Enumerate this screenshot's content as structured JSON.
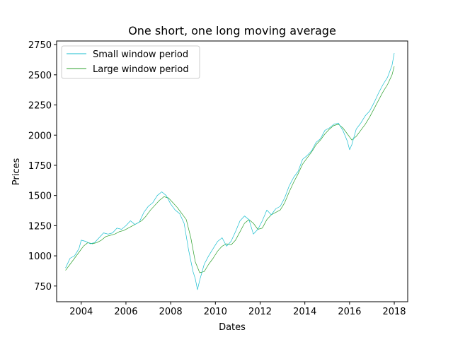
{
  "chart_data": {
    "type": "line",
    "title": "One short, one long moving average",
    "xlabel": "Dates",
    "ylabel": "Prices",
    "xlim": [
      2002.9,
      2018.6
    ],
    "ylim": [
      620,
      2780
    ],
    "grid": false,
    "legend_position": "top-left",
    "x_ticks": [
      {
        "value": 2004,
        "label": "2004"
      },
      {
        "value": 2006,
        "label": "2006"
      },
      {
        "value": 2008,
        "label": "2008"
      },
      {
        "value": 2010,
        "label": "2010"
      },
      {
        "value": 2012,
        "label": "2012"
      },
      {
        "value": 2014,
        "label": "2014"
      },
      {
        "value": 2016,
        "label": "2016"
      },
      {
        "value": 2018,
        "label": "2018"
      }
    ],
    "y_ticks": [
      {
        "value": 750,
        "label": "750"
      },
      {
        "value": 1000,
        "label": "1000"
      },
      {
        "value": 1250,
        "label": "1250"
      },
      {
        "value": 1500,
        "label": "1500"
      },
      {
        "value": 1750,
        "label": "1750"
      },
      {
        "value": 2000,
        "label": "2000"
      },
      {
        "value": 2250,
        "label": "2250"
      },
      {
        "value": 2500,
        "label": "2500"
      },
      {
        "value": 2750,
        "label": "2750"
      }
    ],
    "series": [
      {
        "name": "Small window period",
        "color": "#17becf",
        "x": [
          2003.3,
          2003.5,
          2003.7,
          2003.9,
          2004.0,
          2004.2,
          2004.4,
          2004.6,
          2004.8,
          2005.0,
          2005.2,
          2005.4,
          2005.6,
          2005.8,
          2006.0,
          2006.2,
          2006.4,
          2006.6,
          2006.8,
          2007.0,
          2007.2,
          2007.4,
          2007.6,
          2007.8,
          2008.0,
          2008.2,
          2008.4,
          2008.6,
          2008.8,
          2009.0,
          2009.1,
          2009.2,
          2009.3,
          2009.5,
          2009.7,
          2009.9,
          2010.1,
          2010.3,
          2010.5,
          2010.7,
          2010.9,
          2011.1,
          2011.3,
          2011.5,
          2011.7,
          2011.9,
          2012.1,
          2012.3,
          2012.5,
          2012.7,
          2012.9,
          2013.1,
          2013.3,
          2013.5,
          2013.7,
          2013.9,
          2014.1,
          2014.3,
          2014.5,
          2014.7,
          2014.9,
          2015.1,
          2015.3,
          2015.5,
          2015.7,
          2015.9,
          2016.0,
          2016.1,
          2016.3,
          2016.5,
          2016.7,
          2016.9,
          2017.1,
          2017.3,
          2017.5,
          2017.7,
          2017.9,
          2018.0
        ],
        "y": [
          900,
          980,
          1000,
          1060,
          1130,
          1120,
          1100,
          1110,
          1150,
          1190,
          1180,
          1190,
          1230,
          1220,
          1250,
          1290,
          1260,
          1280,
          1360,
          1410,
          1440,
          1500,
          1530,
          1500,
          1430,
          1380,
          1350,
          1270,
          1050,
          870,
          810,
          720,
          800,
          930,
          1000,
          1060,
          1120,
          1150,
          1080,
          1120,
          1200,
          1290,
          1330,
          1300,
          1180,
          1220,
          1290,
          1380,
          1340,
          1390,
          1410,
          1480,
          1580,
          1650,
          1700,
          1800,
          1830,
          1870,
          1940,
          1970,
          2040,
          2060,
          2090,
          2100,
          2040,
          1950,
          1880,
          1920,
          2050,
          2100,
          2160,
          2200,
          2270,
          2350,
          2420,
          2480,
          2580,
          2680
        ]
      },
      {
        "name": "Large window period",
        "color": "#2ca02c",
        "x": [
          2003.3,
          2003.5,
          2003.7,
          2003.9,
          2004.1,
          2004.3,
          2004.5,
          2004.7,
          2004.9,
          2005.1,
          2005.3,
          2005.5,
          2005.7,
          2005.9,
          2006.1,
          2006.3,
          2006.5,
          2006.7,
          2006.9,
          2007.1,
          2007.3,
          2007.5,
          2007.7,
          2007.9,
          2008.1,
          2008.3,
          2008.5,
          2008.7,
          2008.9,
          2009.1,
          2009.3,
          2009.5,
          2009.7,
          2009.9,
          2010.1,
          2010.3,
          2010.5,
          2010.7,
          2010.9,
          2011.1,
          2011.3,
          2011.5,
          2011.7,
          2011.9,
          2012.1,
          2012.3,
          2012.5,
          2012.7,
          2012.9,
          2013.1,
          2013.3,
          2013.5,
          2013.7,
          2013.9,
          2014.1,
          2014.3,
          2014.5,
          2014.7,
          2014.9,
          2015.1,
          2015.3,
          2015.5,
          2015.7,
          2015.9,
          2016.1,
          2016.3,
          2016.5,
          2016.7,
          2016.9,
          2017.1,
          2017.3,
          2017.5,
          2017.7,
          2017.9,
          2018.0
        ],
        "y": [
          880,
          930,
          980,
          1030,
          1080,
          1110,
          1100,
          1110,
          1130,
          1160,
          1170,
          1180,
          1200,
          1210,
          1230,
          1250,
          1270,
          1290,
          1330,
          1380,
          1420,
          1460,
          1490,
          1480,
          1440,
          1400,
          1350,
          1300,
          1150,
          950,
          860,
          870,
          930,
          980,
          1040,
          1080,
          1100,
          1090,
          1130,
          1200,
          1270,
          1300,
          1270,
          1220,
          1230,
          1300,
          1340,
          1360,
          1380,
          1440,
          1530,
          1610,
          1680,
          1760,
          1810,
          1860,
          1920,
          1960,
          2010,
          2050,
          2080,
          2090,
          2060,
          2010,
          1960,
          1990,
          2040,
          2090,
          2150,
          2220,
          2290,
          2360,
          2420,
          2500,
          2570
        ]
      }
    ]
  }
}
